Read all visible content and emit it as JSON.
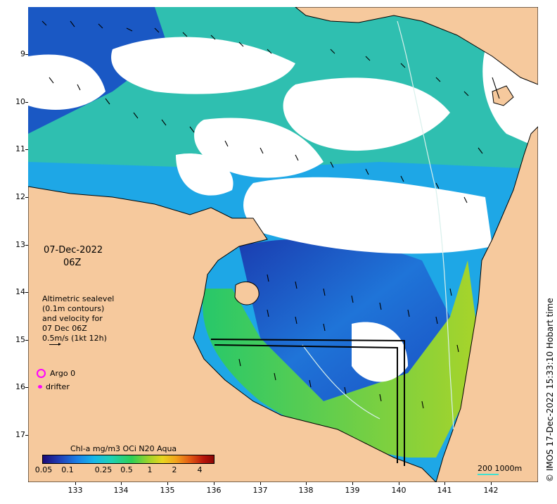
{
  "map": {
    "date": "07-Dec-2022",
    "time": "06Z",
    "altimetry_lines": [
      "Altimetric sealevel",
      "(0.1m contours)",
      "and velocity for",
      "07 Dec 06Z",
      "0.5m/s (1kt 12h)"
    ],
    "argo_label": "Argo 0",
    "drifter_label": "drifter",
    "colorbar_title": "Chl-a mg/m3 OCi N20 Aqua",
    "colorbar_ticks": [
      "0.05",
      "0.1",
      "0.25",
      "0.5",
      "1",
      "2",
      "4"
    ],
    "distance_scale": "200  1000m",
    "credit": "© IMOS 17-Dec-2022 15:33:10 Hobart time",
    "lat_ticks": [
      "9",
      "10",
      "11",
      "12",
      "13",
      "14",
      "15",
      "16",
      "17"
    ],
    "lon_ticks": [
      "133",
      "134",
      "135",
      "136",
      "137",
      "138",
      "139",
      "140",
      "141",
      "142"
    ],
    "colors": {
      "land": "#f6c99d",
      "cloud": "#ffffff",
      "argo": "#ff00ff",
      "drifter": "#ff00ff",
      "bathymetry_line": "#40e0d0"
    }
  }
}
